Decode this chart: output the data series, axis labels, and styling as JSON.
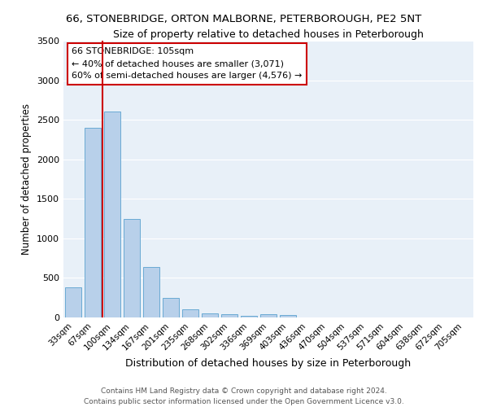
{
  "title": "66, STONEBRIDGE, ORTON MALBORNE, PETERBOROUGH, PE2 5NT",
  "subtitle": "Size of property relative to detached houses in Peterborough",
  "xlabel": "Distribution of detached houses by size in Peterborough",
  "ylabel": "Number of detached properties",
  "footer_line1": "Contains HM Land Registry data © Crown copyright and database right 2024.",
  "footer_line2": "Contains public sector information licensed under the Open Government Licence v3.0.",
  "categories": [
    "33sqm",
    "67sqm",
    "100sqm",
    "134sqm",
    "167sqm",
    "201sqm",
    "235sqm",
    "268sqm",
    "302sqm",
    "336sqm",
    "369sqm",
    "403sqm",
    "436sqm",
    "470sqm",
    "504sqm",
    "537sqm",
    "571sqm",
    "604sqm",
    "638sqm",
    "672sqm",
    "705sqm"
  ],
  "bar_values": [
    380,
    2400,
    2600,
    1250,
    640,
    250,
    105,
    55,
    45,
    25,
    40,
    30,
    0,
    0,
    0,
    0,
    0,
    0,
    0,
    0,
    0
  ],
  "bar_color": "#b8d0ea",
  "bar_edge_color": "#6aaad4",
  "bg_color": "#e8f0f8",
  "grid_color": "#ffffff",
  "vline_color": "#cc0000",
  "vline_x": 1.5,
  "annotation_line1": "66 STONEBRIDGE: 105sqm",
  "annotation_line2": "← 40% of detached houses are smaller (3,071)",
  "annotation_line3": "60% of semi-detached houses are larger (4,576) →",
  "annotation_box_color": "#cc0000",
  "ylim": [
    0,
    3500
  ],
  "yticks": [
    0,
    500,
    1000,
    1500,
    2000,
    2500,
    3000,
    3500
  ]
}
